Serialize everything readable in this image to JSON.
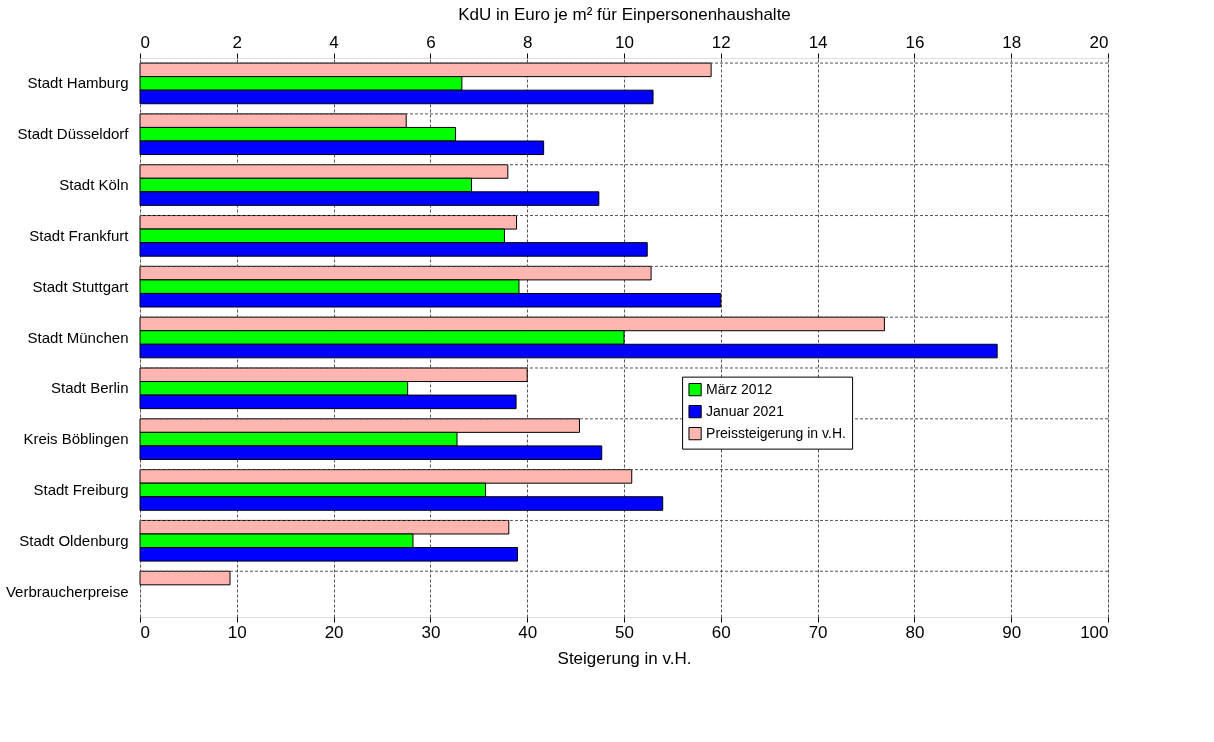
{
  "chart_data": {
    "type": "bar",
    "orientation": "horizontal",
    "x2label": "KdU in Euro je m² für Einpersonenhaushalte",
    "xlabel": "Steigerung in v.H.",
    "categories": [
      "Stadt Hamburg",
      "Stadt Düsseldorf",
      "Stadt Köln",
      "Stadt Frankfurt",
      "Stadt Stuttgart",
      "Stadt München",
      "Stadt Berlin",
      "Kreis Böblingen",
      "Stadt Freiburg",
      "Stadt Oldenburg",
      "Verbraucherpreise"
    ],
    "series": [
      {
        "name": "März 2012",
        "color": "#00ff00",
        "axis": "x2",
        "values": [
          6.65,
          6.52,
          6.85,
          7.53,
          7.83,
          10.0,
          5.53,
          6.55,
          7.14,
          5.64,
          null
        ]
      },
      {
        "name": "Januar 2021",
        "color": "#0000ff",
        "axis": "x2",
        "values": [
          10.6,
          8.34,
          9.48,
          10.48,
          12.0,
          17.71,
          7.77,
          9.54,
          10.8,
          7.8,
          null
        ]
      },
      {
        "name": "Preissteigerung in v.H.",
        "color": "#ffb6b0",
        "values": [
          59.0,
          27.5,
          38.0,
          38.9,
          52.8,
          76.9,
          40.0,
          45.4,
          50.8,
          38.1,
          9.3
        ]
      }
    ],
    "xlim": [
      0,
      100
    ],
    "xticks": [
      0,
      10,
      20,
      30,
      40,
      50,
      60,
      70,
      80,
      90,
      100
    ],
    "x2lim": [
      0,
      20
    ],
    "x2ticks": [
      0,
      2,
      4,
      6,
      8,
      10,
      12,
      14,
      16,
      18,
      20
    ],
    "grid": true,
    "legend": "right"
  }
}
